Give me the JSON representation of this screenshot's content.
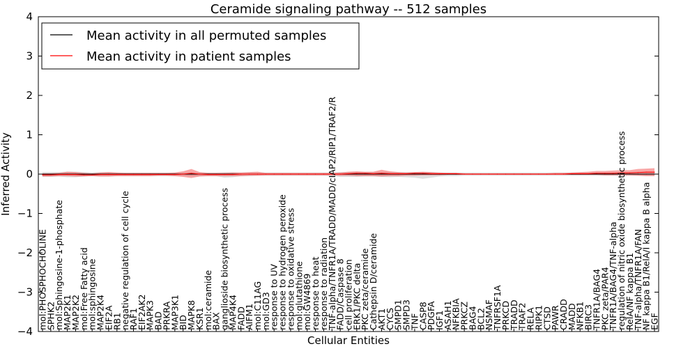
{
  "chart_data": {
    "type": "line",
    "title": "Ceramide signaling pathway -- 512 samples",
    "xlabel": "Cellular Entities",
    "ylabel": "Inferred Activity",
    "ylim": [
      -4,
      4
    ],
    "yticks": [
      -4,
      -3,
      -2,
      -1,
      0,
      1,
      2,
      3,
      4
    ],
    "legend_position": "top-left",
    "categories": [
      "mol:PHOSPHOCHOLINE",
      "SPHK2",
      "mol:Sphingosine-1-phosphate",
      "MAP2K1",
      "MAP2K2",
      "mol:Free Fatty acid",
      "mol:sphingosine",
      "MAP2K4",
      "EIF2A",
      "RB1",
      "negative regulation of cell cycle",
      "RAF1",
      "EIF2AK2",
      "MAPK3",
      "BAD",
      "PRKRA",
      "MAP3K1",
      "BID",
      "MAPK8",
      "KSR1",
      "mol:ceramide",
      "BAX",
      "ganglioside biosynthetic process",
      "MAP4K4",
      "FADD",
      "AIFM1",
      "mol:C11AG",
      "mol:GD3",
      "response to UV",
      "response to hydrogen peroxide",
      "response to oxidative stress",
      "mol:glutathione",
      "mol:GW4869",
      "response to heat",
      "response to radiation",
      "TNF-alpha/TNFR1A/TRADD/MADD/cIAP2/RIP1/TRAF2/R",
      "FADD/Caspase 8",
      "cell proliferation",
      "ERK1/PKC delta",
      "PKC zeta/ceramide",
      "Cathepsin D/ceramide",
      "AKT1",
      "CYCS",
      "SMPD1",
      "SMPD3",
      "TNF",
      "CASP8",
      "PDGFA",
      "IGF1",
      "ASAH1",
      "NFKBIA",
      "PRKCZ",
      "BAG4",
      "BCL2",
      "NSMAF",
      "TNFRSF1A",
      "PRKCD",
      "TRADD",
      "TRAF2",
      "RELA",
      "RIPK1",
      "CTSD",
      "PAWR",
      "CRADD",
      "MADD",
      "NFKB1",
      "BIRC3",
      "TNFR1A/BAG4",
      "PKC zeta/PAR4",
      "TNFR1A/BAG4/TNF-alpha",
      "regulation of nitric oxide biosynthetic process",
      "RelA/NF kappa B1",
      "TNF-alpha/TNFR1A/FAN",
      "NF kappa B1/RelA/I kappa B alpha",
      "EGF"
    ],
    "series": [
      {
        "name": "Mean activity in all permuted samples",
        "color": "#000000",
        "values": [
          0,
          0,
          0,
          0,
          0,
          0,
          0,
          0,
          0,
          0,
          0,
          0,
          0,
          0,
          0,
          0,
          0,
          0,
          0,
          0,
          0,
          0,
          0,
          0,
          0,
          0,
          0,
          0,
          0,
          0,
          0,
          0,
          0,
          0,
          0,
          0,
          0,
          0,
          0,
          0,
          0,
          0,
          0,
          0,
          0,
          0,
          0,
          0,
          0,
          0,
          0,
          0,
          0,
          0,
          0,
          0,
          0,
          0,
          0,
          0,
          0,
          0,
          0,
          0,
          0,
          0,
          0,
          0,
          0,
          0,
          0,
          0,
          0,
          0,
          0
        ],
        "band_lower": [
          -0.07,
          -0.07,
          -0.06,
          -0.08,
          -0.08,
          -0.06,
          -0.05,
          -0.06,
          -0.06,
          -0.05,
          -0.05,
          -0.05,
          -0.05,
          -0.05,
          -0.05,
          -0.05,
          -0.05,
          -0.04,
          -0.05,
          -0.05,
          -0.05,
          -0.05,
          -0.09,
          -0.08,
          -0.05,
          -0.05,
          -0.04,
          -0.04,
          -0.04,
          -0.04,
          -0.04,
          -0.04,
          -0.04,
          -0.04,
          -0.04,
          -0.05,
          -0.07,
          -0.07,
          -0.07,
          -0.06,
          -0.06,
          -0.07,
          -0.08,
          -0.07,
          -0.08,
          -0.09,
          -0.12,
          -0.09,
          -0.06,
          -0.05,
          -0.05,
          -0.04,
          -0.04,
          -0.04,
          -0.04,
          -0.04,
          -0.04,
          -0.04,
          -0.04,
          -0.04,
          -0.04,
          -0.04,
          -0.04,
          -0.04,
          -0.04,
          -0.04,
          -0.04,
          -0.04,
          -0.04,
          -0.04,
          -0.04,
          -0.04,
          -0.04,
          -0.04,
          -0.04
        ],
        "band_upper": [
          0.05,
          0.05,
          0.05,
          0.06,
          0.06,
          0.05,
          0.04,
          0.05,
          0.05,
          0.04,
          0.04,
          0.04,
          0.04,
          0.04,
          0.04,
          0.04,
          0.04,
          0.04,
          0.04,
          0.04,
          0.04,
          0.04,
          0.05,
          0.05,
          0.04,
          0.04,
          0.04,
          0.04,
          0.04,
          0.04,
          0.04,
          0.04,
          0.04,
          0.04,
          0.04,
          0.04,
          0.05,
          0.05,
          0.05,
          0.05,
          0.05,
          0.05,
          0.05,
          0.05,
          0.05,
          0.05,
          0.05,
          0.05,
          0.04,
          0.04,
          0.04,
          0.04,
          0.04,
          0.04,
          0.04,
          0.04,
          0.04,
          0.04,
          0.04,
          0.04,
          0.04,
          0.04,
          0.04,
          0.04,
          0.04,
          0.04,
          0.04,
          0.04,
          0.04,
          0.04,
          0.04,
          0.04,
          0.04,
          0.04,
          0.04
        ]
      },
      {
        "name": "Mean activity in patient samples",
        "color": "#ff0000",
        "values": [
          -0.02,
          -0.02,
          -0.01,
          -0.01,
          -0.01,
          -0.02,
          -0.02,
          -0.01,
          -0.01,
          -0.01,
          -0.01,
          -0.01,
          -0.01,
          -0.01,
          -0.01,
          -0.01,
          -0.01,
          0.0,
          0.02,
          0.0,
          -0.01,
          -0.01,
          -0.01,
          -0.01,
          0.0,
          0.0,
          0.0,
          0.0,
          0.0,
          0.0,
          0.0,
          0.0,
          0.0,
          0.0,
          0.0,
          0.0,
          0.0,
          0.01,
          0.02,
          0.02,
          0.01,
          0.02,
          0.01,
          0.01,
          0.01,
          0.02,
          0.02,
          0.01,
          0.01,
          0.01,
          0.01,
          0.0,
          0.0,
          0.0,
          0.0,
          0.0,
          0.0,
          0.0,
          0.0,
          0.0,
          0.0,
          0.0,
          0.0,
          0.0,
          0.01,
          0.01,
          0.01,
          0.02,
          0.02,
          0.02,
          0.03,
          0.03,
          0.04,
          0.05,
          0.05
        ],
        "band_lower": [
          -0.06,
          -0.06,
          -0.05,
          -0.05,
          -0.06,
          -0.06,
          -0.05,
          -0.06,
          -0.06,
          -0.05,
          -0.05,
          -0.05,
          -0.05,
          -0.05,
          -0.04,
          -0.04,
          -0.05,
          -0.07,
          -0.1,
          -0.06,
          -0.05,
          -0.05,
          -0.05,
          -0.05,
          -0.05,
          -0.04,
          -0.04,
          -0.03,
          -0.03,
          -0.03,
          -0.03,
          -0.03,
          -0.03,
          -0.03,
          -0.03,
          -0.03,
          -0.04,
          -0.04,
          -0.05,
          -0.05,
          -0.05,
          -0.06,
          -0.05,
          -0.05,
          -0.04,
          -0.04,
          -0.03,
          -0.03,
          -0.03,
          -0.02,
          -0.02,
          -0.02,
          -0.02,
          -0.02,
          -0.02,
          -0.02,
          -0.02,
          -0.02,
          -0.02,
          -0.02,
          -0.02,
          -0.02,
          -0.02,
          -0.02,
          -0.02,
          -0.02,
          -0.02,
          -0.02,
          -0.03,
          -0.03,
          -0.03,
          -0.03,
          -0.04,
          -0.05,
          -0.05
        ],
        "band_upper": [
          0.02,
          0.02,
          0.03,
          0.06,
          0.05,
          0.03,
          0.02,
          0.04,
          0.05,
          0.04,
          0.03,
          0.03,
          0.03,
          0.03,
          0.03,
          0.03,
          0.04,
          0.07,
          0.13,
          0.05,
          0.03,
          0.03,
          0.03,
          0.04,
          0.04,
          0.05,
          0.06,
          0.03,
          0.03,
          0.03,
          0.03,
          0.03,
          0.03,
          0.03,
          0.03,
          0.03,
          0.04,
          0.06,
          0.07,
          0.06,
          0.06,
          0.11,
          0.07,
          0.05,
          0.04,
          0.05,
          0.06,
          0.05,
          0.04,
          0.03,
          0.03,
          0.02,
          0.02,
          0.02,
          0.02,
          0.02,
          0.02,
          0.02,
          0.02,
          0.02,
          0.02,
          0.02,
          0.03,
          0.03,
          0.04,
          0.05,
          0.06,
          0.08,
          0.08,
          0.09,
          0.1,
          0.1,
          0.13,
          0.14,
          0.15
        ]
      }
    ]
  }
}
